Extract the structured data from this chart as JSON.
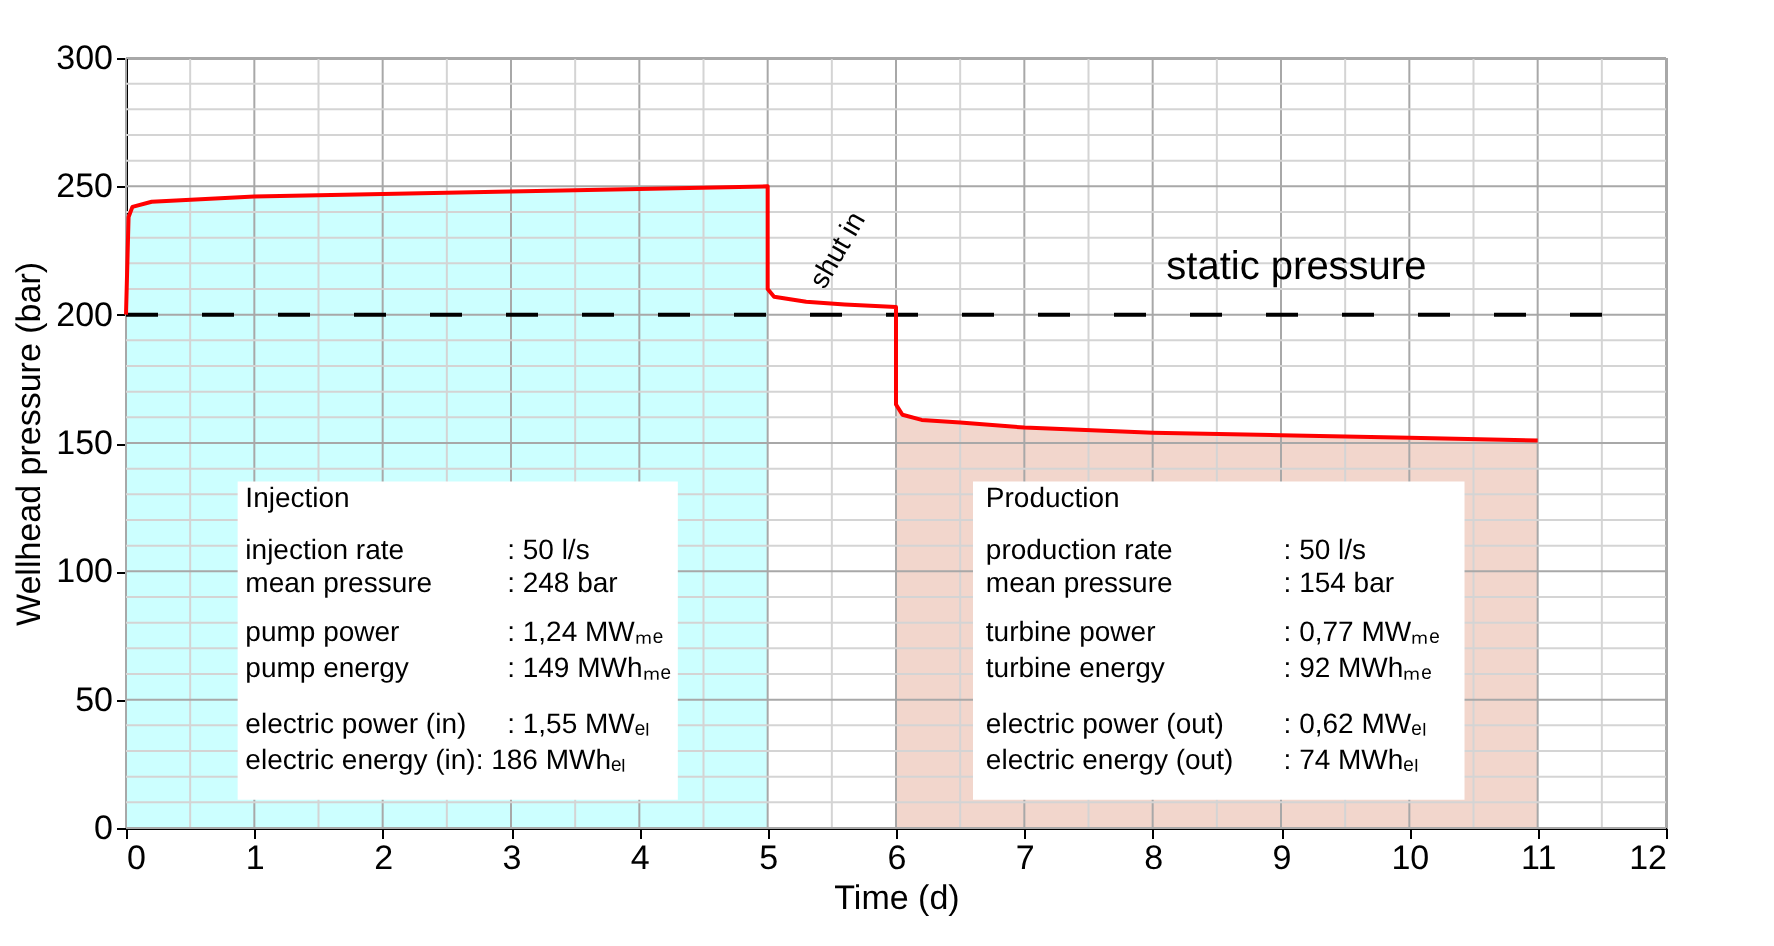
{
  "chart_data": {
    "type": "line",
    "xlabel": "Time (d)",
    "ylabel": "Wellhead pressure (bar)",
    "xlim": [
      0,
      12
    ],
    "ylim": [
      0,
      300
    ],
    "xticks": [
      0,
      {
        "value": 0.5,
        "label": null
      },
      1,
      {
        "value": 1.5,
        "label": null
      },
      2,
      {
        "value": 2.5,
        "label": null
      },
      3,
      {
        "value": 3.5,
        "label": null
      },
      4,
      {
        "value": 4.5,
        "label": null
      },
      5,
      {
        "value": 5.5,
        "label": null
      },
      6,
      {
        "value": 6.5,
        "label": null
      },
      7,
      {
        "value": 7.5,
        "label": null
      },
      8,
      {
        "value": 8.5,
        "label": null
      },
      9,
      {
        "value": 9.5,
        "label": null
      },
      10,
      {
        "value": 10.5,
        "label": null
      },
      11,
      {
        "value": 11.5,
        "label": null
      },
      12
    ],
    "yticks": [
      0,
      {
        "value": 10,
        "label": null
      },
      {
        "value": 20,
        "label": null
      },
      {
        "value": 30,
        "label": null
      },
      {
        "value": 40,
        "label": null
      },
      50,
      {
        "value": 60,
        "label": null
      },
      {
        "value": 70,
        "label": null
      },
      {
        "value": 80,
        "label": null
      },
      {
        "value": 90,
        "label": null
      },
      100,
      {
        "value": 110,
        "label": null
      },
      {
        "value": 120,
        "label": null
      },
      {
        "value": 130,
        "label": null
      },
      {
        "value": 140,
        "label": null
      },
      150,
      {
        "value": 160,
        "label": null
      },
      {
        "value": 170,
        "label": null
      },
      {
        "value": 180,
        "label": null
      },
      {
        "value": 190,
        "label": null
      },
      200,
      {
        "value": 210,
        "label": null
      },
      {
        "value": 220,
        "label": null
      },
      {
        "value": 230,
        "label": null
      },
      {
        "value": 240,
        "label": null
      },
      250,
      {
        "value": 260,
        "label": null
      },
      {
        "value": 270,
        "label": null
      },
      {
        "value": 280,
        "label": null
      },
      {
        "value": 290,
        "label": null
      },
      300
    ],
    "grid": true,
    "marker": "none",
    "series": [
      {
        "type": "area",
        "color": "#ccffff",
        "x": [
          0,
          0.05,
          0.2,
          1,
          2,
          3,
          4,
          5
        ],
        "values": [
          238,
          242,
          244,
          246,
          247,
          248,
          249,
          250
        ]
      },
      {
        "type": "area",
        "color": "#f2d6cc",
        "x": [
          6,
          6.05,
          6.2,
          6.5,
          7,
          8,
          9,
          10,
          11
        ],
        "values": [
          165,
          161,
          159,
          158,
          156,
          154,
          153,
          152,
          151
        ]
      },
      {
        "type": "line",
        "color": "#ff0000",
        "line_style": "solid",
        "x": [
          0,
          0.02,
          0.05,
          0.2,
          1,
          2,
          3,
          4,
          5,
          5,
          5.05,
          5.3,
          5.6,
          6,
          6,
          6.05,
          6.2,
          6.5,
          7,
          8,
          9,
          10,
          11
        ],
        "values": [
          200,
          238,
          242,
          244,
          246,
          247,
          248,
          249,
          250,
          210,
          207,
          205,
          204,
          203,
          165,
          161,
          159,
          158,
          156,
          154,
          153,
          152,
          151
        ]
      }
    ],
    "ref_lines": [
      {
        "axis": "y",
        "value": 200,
        "label": "static pressure",
        "color": "#000000",
        "line_style": "dashed"
      }
    ],
    "annotations": [
      "shut in",
      "Injection",
      "injection rate : 50 l/s",
      "mean pressure : 248 bar",
      "pump power : 1,24 MWₘₑ",
      "pump energy : 149 MWhₘₑ",
      "electric power (in) : 1,55 MWₑₗ",
      "electric energy (in): 186 MWhₑₗ",
      "Production",
      "production rate : 50 l/s",
      "mean pressure : 154 bar",
      "turbine power : 0,77 MWₘₑ",
      "turbine energy : 92 MWhₘₑ",
      "electric power (out) : 0,62 MWₑₗ",
      "electric energy (out) : 74 MWhₑₗ"
    ]
  }
}
